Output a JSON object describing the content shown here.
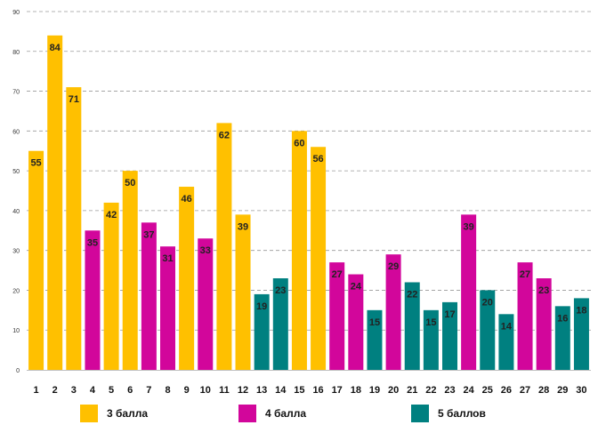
{
  "chart_data": {
    "type": "bar",
    "title": "",
    "xlabel": "",
    "ylabel": "",
    "ylim": [
      0,
      90
    ],
    "yticks": [
      0,
      10,
      20,
      30,
      40,
      50,
      60,
      70,
      80,
      90
    ],
    "grid": true,
    "legend_position": "bottom",
    "categories": [
      "1",
      "2",
      "3",
      "4",
      "5",
      "6",
      "7",
      "8",
      "9",
      "10",
      "11",
      "12",
      "13",
      "14",
      "15",
      "16",
      "17",
      "18",
      "19",
      "20",
      "21",
      "22",
      "23",
      "24",
      "25",
      "26",
      "27",
      "28",
      "29",
      "30"
    ],
    "values": [
      55,
      84,
      71,
      35,
      42,
      50,
      37,
      31,
      46,
      33,
      62,
      39,
      19,
      23,
      60,
      56,
      27,
      24,
      15,
      29,
      22,
      15,
      17,
      39,
      20,
      14,
      27,
      23,
      16,
      18
    ],
    "groups": [
      0,
      0,
      0,
      1,
      0,
      0,
      1,
      1,
      0,
      1,
      0,
      0,
      2,
      2,
      0,
      0,
      1,
      1,
      2,
      1,
      2,
      2,
      2,
      1,
      2,
      2,
      1,
      1,
      2,
      2
    ],
    "series": [
      {
        "name": "3 балла",
        "color": "#FFC000"
      },
      {
        "name": "4 балла",
        "color": "#D2069B"
      },
      {
        "name": "5 баллов",
        "color": "#008080"
      }
    ]
  }
}
